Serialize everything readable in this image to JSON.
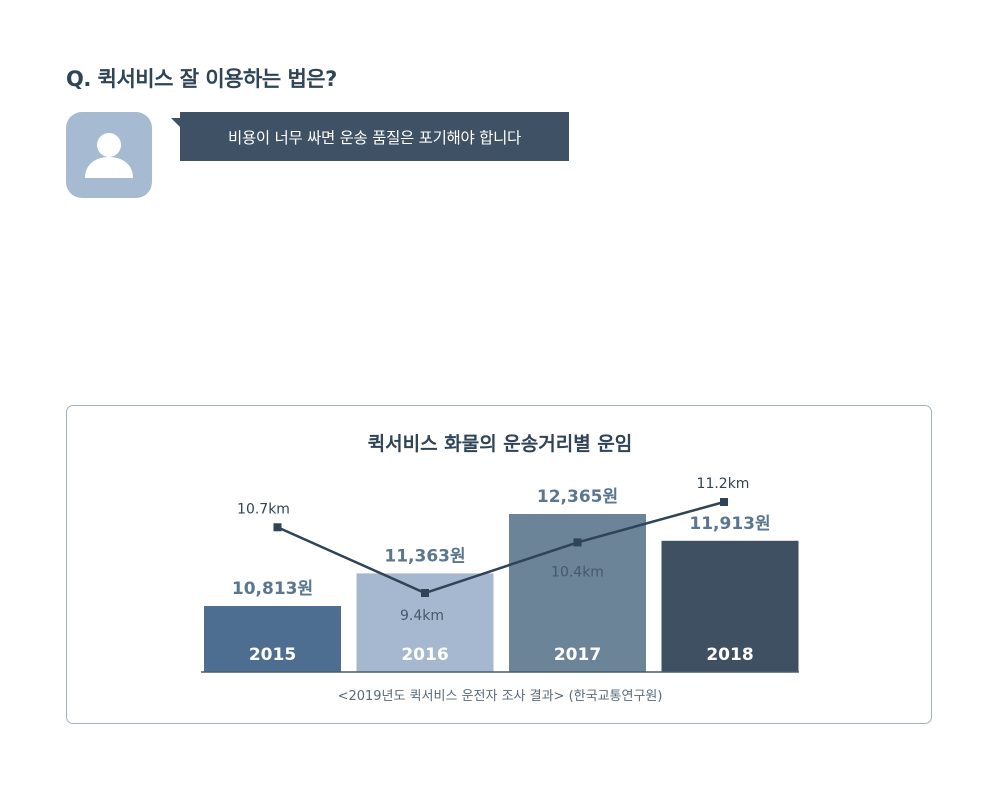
{
  "question": "Q. 퀵서비스 잘 이용하는 법은?",
  "speech": "비용이 너무 싸면 운송 품질은 포기해야 합니다",
  "icons": {
    "avatar": "user-silhouette-icon"
  },
  "colors": {
    "text": "#2f4456",
    "bubble": "#3e5165",
    "avatar_bg": "#a6bbd1",
    "line": "#2f4456",
    "bars": [
      "#4d6e91",
      "#a6b8cf",
      "#6b8498",
      "#3e5062"
    ],
    "value_label": "#5a7690",
    "border": "#9fb3c4"
  },
  "chart_data": {
    "type": "bar",
    "title": "퀵서비스 화물의 운송거리별 운임",
    "categories": [
      "2015",
      "2016",
      "2017",
      "2018"
    ],
    "series": [
      {
        "values": [
          10813,
          11363,
          12365,
          11913
        ],
        "labels": [
          "10,813원",
          "11,363원",
          "12,365원",
          "11,913원"
        ]
      },
      {
        "values": [
          10.7,
          9.4,
          10.4,
          11.2
        ],
        "labels": [
          "10.7km",
          "9.4km",
          "10.4km",
          "11.2km"
        ],
        "type": "line"
      }
    ],
    "source": "<2019년도 퀵서비스 운전자 조사 결과> (한국교통연구원)",
    "grid": false
  }
}
